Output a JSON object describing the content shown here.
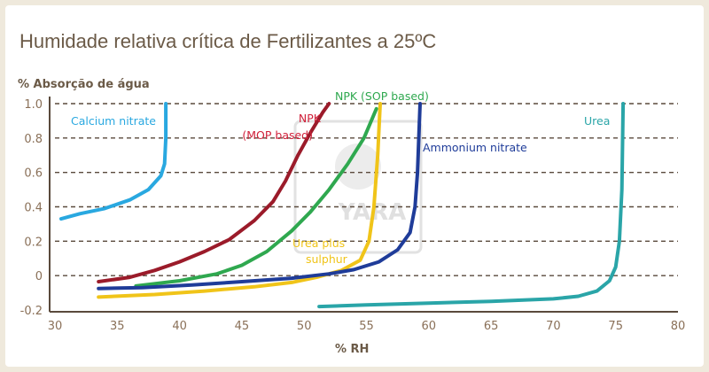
{
  "title": "Humidade relativa crítica de Fertilizantes a 25ºC",
  "watermark": "YARA",
  "chart_data": {
    "type": "line",
    "title": "Humidade relativa crítica de Fertilizantes a 25ºC",
    "xlabel": "% RH",
    "ylabel": "% Absorção de água",
    "xlim": [
      30,
      80
    ],
    "ylim": [
      -0.2,
      1.0
    ],
    "xticks": [
      30,
      35,
      40,
      45,
      50,
      55,
      60,
      65,
      70,
      75,
      80
    ],
    "yticks": [
      -0.2,
      0,
      0.2,
      0.4,
      0.6,
      0.8,
      1.0
    ],
    "ytick_labels": [
      "-0.2",
      "0",
      "0.2",
      "0.4",
      "0.6",
      "0.8",
      "1.0"
    ],
    "grid": "horizontal dashed",
    "series": [
      {
        "name": "Calcium nitrate",
        "color": "#29a8e0",
        "points": [
          [
            30.5,
            0.33
          ],
          [
            32,
            0.36
          ],
          [
            34,
            0.39
          ],
          [
            36,
            0.44
          ],
          [
            37.5,
            0.5
          ],
          [
            38.5,
            0.58
          ],
          [
            38.8,
            0.65
          ],
          [
            38.9,
            0.8
          ],
          [
            38.9,
            1.0
          ]
        ]
      },
      {
        "name": "NPK (MOP based)",
        "color": "#9b1b2a",
        "label_color": "#d0213a",
        "points": [
          [
            33.5,
            -0.035
          ],
          [
            36,
            -0.01
          ],
          [
            38,
            0.03
          ],
          [
            40,
            0.08
          ],
          [
            42,
            0.14
          ],
          [
            44,
            0.21
          ],
          [
            46,
            0.32
          ],
          [
            47.5,
            0.43
          ],
          [
            48.5,
            0.55
          ],
          [
            49.5,
            0.7
          ],
          [
            50.5,
            0.83
          ],
          [
            51.5,
            0.95
          ],
          [
            52,
            1.0
          ]
        ]
      },
      {
        "name": "NPK (SOP based)",
        "color": "#2fa84f",
        "points": [
          [
            36.5,
            -0.06
          ],
          [
            40,
            -0.03
          ],
          [
            43,
            0.01
          ],
          [
            45,
            0.06
          ],
          [
            47,
            0.14
          ],
          [
            49,
            0.26
          ],
          [
            50.5,
            0.37
          ],
          [
            52,
            0.5
          ],
          [
            53.5,
            0.65
          ],
          [
            54.8,
            0.8
          ],
          [
            55.8,
            0.97
          ]
        ]
      },
      {
        "name": "Urea plus sulphur",
        "color": "#f0c419",
        "points": [
          [
            33.5,
            -0.125
          ],
          [
            38,
            -0.11
          ],
          [
            42,
            -0.09
          ],
          [
            46,
            -0.065
          ],
          [
            49,
            -0.04
          ],
          [
            51,
            -0.01
          ],
          [
            53,
            0.03
          ],
          [
            54.5,
            0.09
          ],
          [
            55.2,
            0.2
          ],
          [
            55.6,
            0.4
          ],
          [
            55.9,
            0.7
          ],
          [
            56.1,
            1.0
          ]
        ]
      },
      {
        "name": "Ammonium nitrate",
        "color": "#1f3c99",
        "points": [
          [
            33.5,
            -0.075
          ],
          [
            37,
            -0.07
          ],
          [
            41,
            -0.055
          ],
          [
            45,
            -0.035
          ],
          [
            49,
            -0.015
          ],
          [
            52,
            0.01
          ],
          [
            54,
            0.035
          ],
          [
            56,
            0.08
          ],
          [
            57.5,
            0.15
          ],
          [
            58.5,
            0.25
          ],
          [
            58.9,
            0.4
          ],
          [
            59.1,
            0.6
          ],
          [
            59.3,
            1.0
          ]
        ]
      },
      {
        "name": "Urea",
        "color": "#2aa5a8",
        "points": [
          [
            51.2,
            -0.18
          ],
          [
            55,
            -0.17
          ],
          [
            60,
            -0.16
          ],
          [
            65,
            -0.15
          ],
          [
            70,
            -0.135
          ],
          [
            72,
            -0.12
          ],
          [
            73.5,
            -0.09
          ],
          [
            74.5,
            -0.03
          ],
          [
            75,
            0.05
          ],
          [
            75.3,
            0.2
          ],
          [
            75.5,
            0.5
          ],
          [
            75.6,
            1.0
          ]
        ]
      }
    ],
    "annotations": [
      "Calcium nitrate",
      "NPK",
      "(MOP based)",
      "NPK (SOP based)",
      "Ammonium nitrate",
      "Urea",
      "Urea plus",
      "sulphur"
    ]
  }
}
